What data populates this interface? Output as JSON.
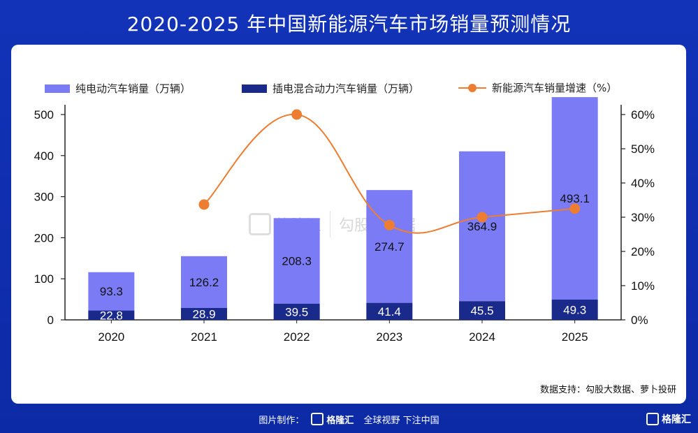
{
  "page": {
    "title": "2020-2025 年中国新能源汽车市场销量预测情况",
    "source": "数据支持：勾股大数据、萝卜投研",
    "footer": {
      "made_by": "图片制作：",
      "logo": "格隆汇",
      "slogan": "全球视野 下注中国",
      "corner_logo": "格隆汇"
    },
    "watermark": {
      "brand": "格隆汇",
      "partner": "勾股大数据"
    }
  },
  "legend": {
    "bev": "纯电动汽车销量（万辆）",
    "phev": "插电混合动力汽车销量（万辆）",
    "growth": "新能源汽车销量增速（%）"
  },
  "colors": {
    "bev": "#7b7cf5",
    "phev": "#1a2a8a",
    "growth": "#ed7d31"
  },
  "chart_data": {
    "type": "bar",
    "stacked": true,
    "categories": [
      "2020",
      "2021",
      "2022",
      "2023",
      "2024",
      "2025"
    ],
    "series": [
      {
        "name": "插电混合动力汽车销量（万辆）",
        "axis": "left",
        "values": [
          22.8,
          28.9,
          39.5,
          41.4,
          45.5,
          49.3
        ]
      },
      {
        "name": "纯电动汽车销量（万辆）",
        "axis": "left",
        "values": [
          93.3,
          126.2,
          208.3,
          274.7,
          364.9,
          493.1
        ]
      },
      {
        "name": "新能源汽车销量增速（%）",
        "axis": "right",
        "type": "line",
        "values": [
          null,
          33.7,
          60.0,
          27.7,
          30.0,
          32.5
        ]
      }
    ],
    "y_left": {
      "ylim": [
        0,
        500
      ],
      "ticks": [
        0,
        100,
        200,
        300,
        400,
        500
      ]
    },
    "y_right": {
      "ylim": [
        0,
        60
      ],
      "ticks": [
        "0%",
        "10%",
        "20%",
        "30%",
        "40%",
        "50%",
        "60%"
      ]
    },
    "legend_position": "top",
    "grid": false
  }
}
